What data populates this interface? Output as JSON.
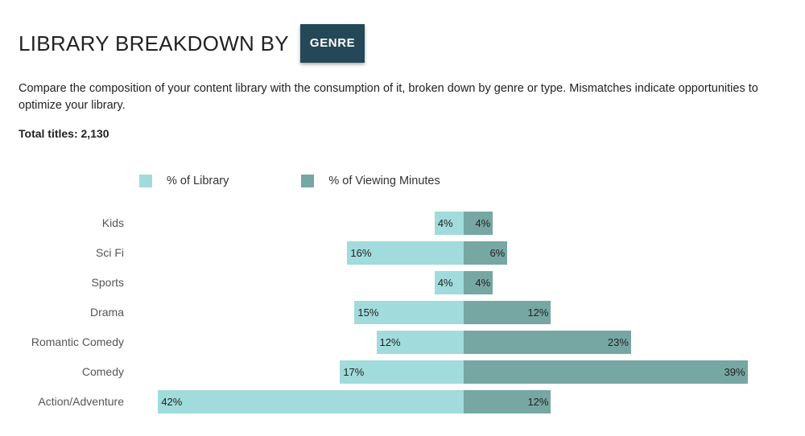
{
  "header": {
    "title": "LIBRARY BREAKDOWN BY",
    "genre_button_label": "GENRE"
  },
  "description": "Compare the composition of your content library with the consumption of it, broken down by genre or type. Mismatches indicate opportunities to optimize your library.",
  "total_titles": "Total titles: 2,130",
  "colors": {
    "library": "#a1dbdb",
    "viewing": "#76a7a3",
    "button_bg": "#244857"
  },
  "chart_data": {
    "type": "bar",
    "orientation": "horizontal-diverging",
    "categories": [
      "Kids",
      "Sci Fi",
      "Sports",
      "Drama",
      "Romantic Comedy",
      "Comedy",
      "Action/Adventure"
    ],
    "series": [
      {
        "name": "% of Library",
        "values": [
          4,
          16,
          4,
          15,
          12,
          17,
          42
        ],
        "labels": [
          "4%",
          "16%",
          "4%",
          "15%",
          "12%",
          "17%",
          "42%"
        ]
      },
      {
        "name": "% of Viewing Minutes",
        "values": [
          4,
          6,
          4,
          12,
          23,
          39,
          12
        ],
        "labels": [
          "4%",
          "6%",
          "4%",
          "12%",
          "23%",
          "39%",
          "12%"
        ]
      }
    ],
    "legend_position": "top",
    "grid": false
  }
}
